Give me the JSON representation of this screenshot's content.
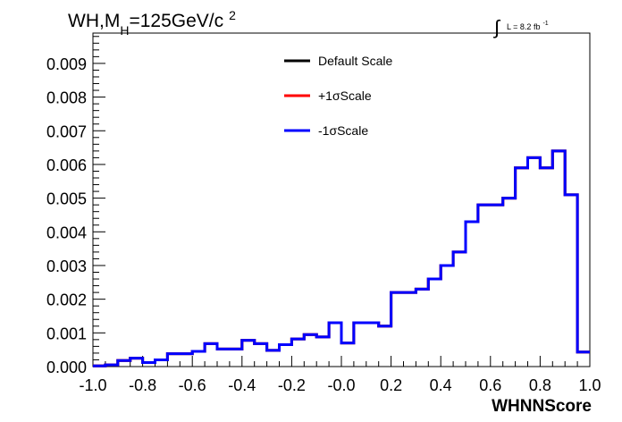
{
  "chart_data": {
    "type": "line",
    "title": {
      "prefix": "WH,M",
      "subscript": "H",
      "suffix": "=125GeV/c",
      "superscript": "2"
    },
    "luminosity": {
      "integral_symbol": "∫",
      "label": "L = 8.2 fb",
      "superscript": "-1"
    },
    "xlabel": "WHNNScore",
    "ylabel": "",
    "xlim": [
      -1.0,
      1.0
    ],
    "ylim": [
      0,
      0.0099
    ],
    "x_tick_values": [
      -1.0,
      -0.8,
      -0.6,
      -0.4,
      -0.2,
      0.0,
      0.2,
      0.4,
      0.6,
      0.8,
      1.0
    ],
    "x_tick_labels": [
      "-1.0",
      "-0.8",
      "-0.6",
      "-0.4",
      "-0.2",
      "-0.0",
      "0.2",
      "0.4",
      "0.6",
      "0.8",
      "1.0"
    ],
    "y_tick_values": [
      0.0,
      0.001,
      0.002,
      0.003,
      0.004,
      0.005,
      0.006,
      0.007,
      0.008,
      0.009
    ],
    "y_tick_labels": [
      "0.000",
      "0.001",
      "0.002",
      "0.003",
      "0.004",
      "0.005",
      "0.006",
      "0.007",
      "0.008",
      "0.009"
    ],
    "bin_edges": [
      -1.0,
      -0.95,
      -0.9,
      -0.85,
      -0.8,
      -0.75,
      -0.7,
      -0.65,
      -0.6,
      -0.55,
      -0.5,
      -0.45,
      -0.4,
      -0.35,
      -0.3,
      -0.25,
      -0.2,
      -0.15,
      -0.1,
      -0.05,
      0.0,
      0.05,
      0.1,
      0.15,
      0.2,
      0.25,
      0.3,
      0.35,
      0.4,
      0.45,
      0.5,
      0.55,
      0.6,
      0.65,
      0.7,
      0.75,
      0.8,
      0.85,
      0.9,
      0.95,
      1.0
    ],
    "series": [
      {
        "name": "Default Scale",
        "color": "#000000",
        "values": [
          2e-05,
          5e-05,
          0.00018,
          0.00025,
          0.00012,
          0.0002,
          0.00038,
          0.00038,
          0.00045,
          0.00068,
          0.00052,
          0.00052,
          0.00078,
          0.00068,
          0.00048,
          0.00065,
          0.00082,
          0.00095,
          0.00088,
          0.0013,
          0.0007,
          0.0013,
          0.0013,
          0.0012,
          0.0022,
          0.0022,
          0.0023,
          0.0026,
          0.003,
          0.0034,
          0.0043,
          0.0048,
          0.0048,
          0.005,
          0.0059,
          0.0062,
          0.0059,
          0.0064,
          0.0051,
          0.00043
        ]
      },
      {
        "name": "+1σScale",
        "color": "#ff0000",
        "values": [
          2e-05,
          5e-05,
          0.00018,
          0.00025,
          0.00012,
          0.0002,
          0.00038,
          0.00038,
          0.00045,
          0.00068,
          0.00052,
          0.00052,
          0.00078,
          0.00068,
          0.00048,
          0.00065,
          0.00082,
          0.00095,
          0.00088,
          0.0013,
          0.0007,
          0.0013,
          0.0013,
          0.0012,
          0.0022,
          0.0022,
          0.0023,
          0.0026,
          0.003,
          0.0034,
          0.0043,
          0.0048,
          0.0048,
          0.005,
          0.0059,
          0.0062,
          0.0059,
          0.0064,
          0.0051,
          0.00043
        ]
      },
      {
        "name": "-1σScale",
        "color": "#0000ff",
        "values": [
          2e-05,
          5e-05,
          0.00018,
          0.00025,
          0.00012,
          0.0002,
          0.00038,
          0.00038,
          0.00045,
          0.00068,
          0.00052,
          0.00052,
          0.00078,
          0.00068,
          0.00048,
          0.00065,
          0.00082,
          0.00095,
          0.00088,
          0.0013,
          0.0007,
          0.0013,
          0.0013,
          0.0012,
          0.0022,
          0.0022,
          0.0023,
          0.0026,
          0.003,
          0.0034,
          0.0043,
          0.0048,
          0.0048,
          0.005,
          0.0059,
          0.0062,
          0.0059,
          0.0064,
          0.0051,
          0.00043
        ]
      }
    ],
    "legend_position": "top-center",
    "grid": false
  }
}
